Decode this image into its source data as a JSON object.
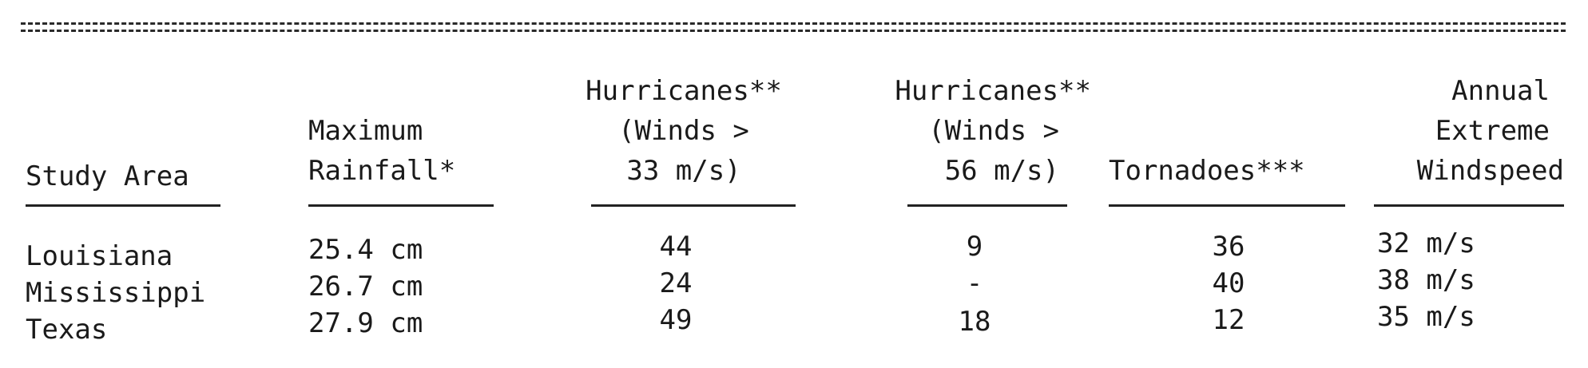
{
  "headers": {
    "study_area": "Study Area",
    "max_rainfall": [
      "Maximum",
      "Rainfall*"
    ],
    "hurr33": [
      "Hurricanes**",
      "(Winds >",
      "33 m/s)"
    ],
    "hurr56": [
      "Hurricanes**",
      "(Winds >",
      "56 m/s)"
    ],
    "tornadoes": "Tornadoes***",
    "extreme_wind": [
      "Annual",
      "Extreme",
      "Windspeed"
    ]
  },
  "rows": [
    {
      "area": "Louisiana",
      "rainfall": "25.4 cm",
      "hurr33": "44",
      "hurr56": "9",
      "tornadoes": "36",
      "windspeed": "32 m/s"
    },
    {
      "area": "Mississippi",
      "rainfall": "26.7 cm",
      "hurr33": "24",
      "hurr56": "-",
      "tornadoes": "40",
      "windspeed": "38 m/s"
    },
    {
      "area": "Texas",
      "rainfall": "27.9 cm",
      "hurr33": "49",
      "hurr56": "18",
      "tornadoes": "12",
      "windspeed": "35 m/s"
    }
  ]
}
